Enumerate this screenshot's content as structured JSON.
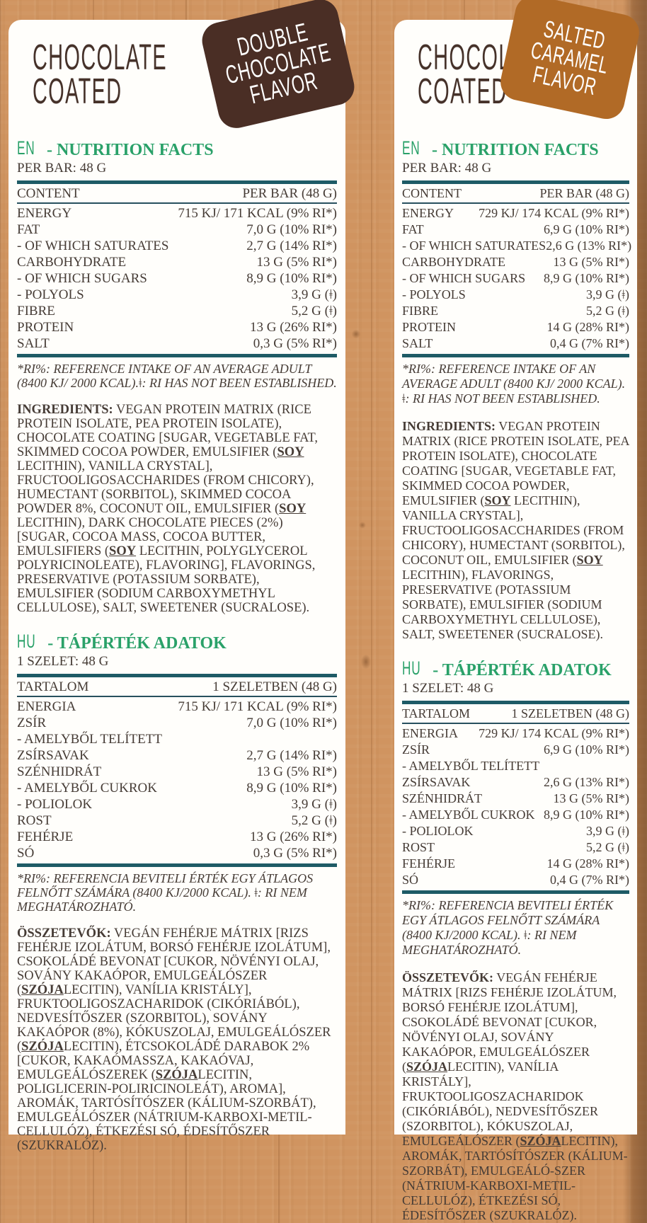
{
  "colors": {
    "wood_background": "#d09460",
    "card": "#fffefb",
    "title_brown": "#46322a",
    "badge_dark_chocolate": "#4a2e25",
    "badge_caramel": "#b16a26",
    "heading_green": "#2aa169",
    "rule_teal": "#1e5b66",
    "body_ink": "#463c36"
  },
  "left_panel": {
    "title": {
      "line1": "CHOCOLATE",
      "line2": "COATED"
    },
    "badge": {
      "line1": "DOUBLE",
      "line2": "CHOCOLATE",
      "line3": "FLAVOR"
    },
    "en": {
      "lang": "EN",
      "heading": "- NUTRITION FACTS",
      "serving": "PER BAR: 48 G",
      "col_content": "CONTENT",
      "col_amount": "PER BAR (48 G)",
      "rows": [
        [
          "ENERGY",
          "715 KJ/ 171 KCAL (9% RI*)"
        ],
        [
          "FAT",
          "7,0 G (10% RI*)"
        ],
        [
          "- OF WHICH SATURATES",
          "2,7 G (14% RI*)"
        ],
        [
          "CARBOHYDRATE",
          "13 G (5% RI*)"
        ],
        [
          "- OF WHICH SUGARS",
          "8,9 G (10% RI*)"
        ],
        [
          "- POLYOLS",
          "3,9 G (ǂ)"
        ],
        [
          "FIBRE",
          "5,2 G (ǂ)"
        ],
        [
          "PROTEIN",
          "13 G (26% RI*)"
        ],
        [
          "SALT",
          "0,3 G (5% RI*)"
        ]
      ],
      "note": "*RI%: REFERENCE INTAKE OF AN AVERAGE ADULT (8400 KJ/ 2000 KCAL).ǂ: RI HAS NOT BEEN ESTABLISHED.",
      "ingredients_label": "INGREDIENTS:",
      "ingredients": [
        {
          "t": " VEGAN PROTEIN MATRIX (RICE PROTEIN ISOLATE, PEA PROTEIN ISOLATE), CHOCOLATE COATING [SUGAR, VEGETABLE FAT, SKIMMED COCOA POWDER, EMULSIFIER ("
        },
        {
          "t": "SOY",
          "em": true
        },
        {
          "t": " LECITHIN), VANILLA CRYSTAL], FRUCTOOLIGOSACCHARIDES (FROM CHICORY), HUMECTANT (SORBITOL), SKIMMED COCOA POWDER 8%, COCONUT OIL, EMULSIFIER ("
        },
        {
          "t": "SOY",
          "em": true
        },
        {
          "t": " LECITHIN), DARK CHOCOLATE PIECES (2%) [SUGAR, COCOA MASS, COCOA BUTTER, EMULSIFIERS ("
        },
        {
          "t": "SOY",
          "em": true
        },
        {
          "t": " LECITHIN, POLYGLYCEROL POLYRICINOLEATE), FLAVORING], FLAVORINGS, PRESERVATIVE (POTASSIUM SORBATE), EMULSIFIER (SODIUM CARBOXYMETHYL CELLULOSE), SALT, SWEETENER (SUCRALOSE)."
        }
      ]
    },
    "hu": {
      "lang": "HU",
      "heading": "- TÁPÉRTÉK ADATOK",
      "serving": "1 SZELET: 48 G",
      "col_content": "TARTALOM",
      "col_amount": "1 SZELETBEN (48 G)",
      "rows": [
        [
          "ENERGIA",
          "715 KJ/ 171 KCAL (9% RI*)"
        ],
        [
          "ZSÍR",
          "7,0 G (10% RI*)"
        ],
        [
          "- AMELYBŐL TELÍTETT",
          ""
        ],
        [
          "ZSÍRSAVAK",
          "2,7 G (14% RI*)"
        ],
        [
          "SZÉNHIDRÁT",
          "13 G (5% RI*)"
        ],
        [
          "- AMELYBŐL CUKROK",
          "8,9 G (10% RI*)"
        ],
        [
          "- POLIOLOK",
          "3,9 G (ǂ)"
        ],
        [
          "ROST",
          "5,2 G (ǂ)"
        ],
        [
          "FEHÉRJE",
          "13 G (26% RI*)"
        ],
        [
          "SÓ",
          "0,3 G (5% RI*)"
        ]
      ],
      "note": "*RI%: REFERENCIA BEVITELI ÉRTÉK EGY ÁTLAGOS FELNŐTT SZÁMÁRA (8400 KJ/2000 KCAL). ǂ: RI NEM MEGHATÁROZHATÓ.",
      "ingredients_label": "ÖSSZETEVŐK:",
      "ingredients": [
        {
          "t": " VEGÁN FEHÉRJE MÁTRIX [RIZS FEHÉRJE IZOLÁTUM, BORSÓ FEHÉRJE IZOLÁTUM], CSOKOLÁDÉ BEVONAT [CUKOR, NÖVÉNYI OLAJ, SOVÁNY KAKAÓPOR, EMULGEÁLÓSZER ("
        },
        {
          "t": "SZÓJA",
          "em": true
        },
        {
          "t": "LECITIN), VANÍLIA KRISTÁLY], FRUKTOOLIGOSZACHARIDOK (CIKÓRIÁBÓL), NEDVESÍTŐSZER (SZORBITOL), SOVÁNY KAKAÓPOR (8%), KÓKUSZOLAJ, EMULGEÁLÓSZER ("
        },
        {
          "t": "SZÓJA",
          "em": true
        },
        {
          "t": "LECITIN), ÉTCSOKOLÁDÉ DARABOK 2% [CUKOR, KAKAÓMASSZA, KAKAÓVAJ, EMULGEÁLÓSZEREK ("
        },
        {
          "t": "SZÓJA",
          "em": true
        },
        {
          "t": "LECITIN, POLIGLICERIN-POLIRICINOLEÁT), AROMA], AROMÁK, TARTÓSÍTÓSZER (KÁLIUM-SZORBÁT), EMULGEÁLÓSZER (NÁTRIUM-KARBOXI-METIL-CELLULÓZ), ÉTKEZÉSI SÓ, ÉDESÍTŐSZER (SZUKRALÓZ)."
        }
      ]
    }
  },
  "right_panel": {
    "title": {
      "line1": "CHOCOLATE",
      "line2": "COATED"
    },
    "badge": {
      "line1": "SALTED",
      "line2": "CARAMEL",
      "line3": "FLAVOR"
    },
    "en": {
      "lang": "EN",
      "heading": "- NUTRITION FACTS",
      "serving": "PER BAR: 48 G",
      "col_content": "CONTENT",
      "col_amount": "PER BAR (48 G)",
      "rows": [
        [
          "ENERGY",
          "729 KJ/ 174 KCAL (9% RI*)"
        ],
        [
          "FAT",
          "6,9 G (10% RI*)"
        ],
        [
          "- OF WHICH SATURATES",
          "2,6 G (13% RI*)"
        ],
        [
          "CARBOHYDRATE",
          "13 G (5% RI*)"
        ],
        [
          "- OF WHICH SUGARS",
          "8,9 G (10% RI*)"
        ],
        [
          "- POLYOLS",
          "3,9 G (ǂ)"
        ],
        [
          "FIBRE",
          "5,2 G (ǂ)"
        ],
        [
          "PROTEIN",
          "14 G (28% RI*)"
        ],
        [
          "SALT",
          "0,4 G (7% RI*)"
        ]
      ],
      "note": "*RI%: REFERENCE INTAKE OF AN AVERAGE ADULT (8400 KJ/ 2000 KCAL). ǂ: RI HAS NOT BEEN ESTABLISHED.",
      "ingredients_label": "INGREDIENTS:",
      "ingredients": [
        {
          "t": " VEGAN PROTEIN MATRIX (RICE PROTEIN ISOLATE, PEA PROTEIN ISOLATE), CHOCOLATE COATING [SUGAR, VEGETABLE FAT, SKIMMED COCOA POWDER, EMULSIFIER ("
        },
        {
          "t": "SOY",
          "em": true
        },
        {
          "t": " LECITHIN), VANILLA CRYSTAL], FRUCTOOLIGOSACCHARIDES (FROM CHICORY), HUMECTANT (SORBITOL), COCONUT OIL, EMULSIFIER ("
        },
        {
          "t": "SOY",
          "em": true
        },
        {
          "t": " LECITHIN), FLAVORINGS, PRESERVATIVE (POTASSIUM SORBATE), EMULSIFIER (SODIUM CARBOXYMETHYL CELLULOSE), SALT, SWEETENER (SUCRALOSE)."
        }
      ]
    },
    "hu": {
      "lang": "HU",
      "heading": "- TÁPÉRTÉK ADATOK",
      "serving": "1 SZELET: 48 G",
      "col_content": "TARTALOM",
      "col_amount": "1 SZELETBEN (48 G)",
      "rows": [
        [
          "ENERGIA",
          "729 KJ/ 174 KCAL (9% RI*)"
        ],
        [
          "ZSÍR",
          "6,9 G (10% RI*)"
        ],
        [
          "- AMELYBŐL TELÍTETT",
          ""
        ],
        [
          "ZSÍRSAVAK",
          "2,6 G (13% RI*)"
        ],
        [
          "SZÉNHIDRÁT",
          "13 G (5% RI*)"
        ],
        [
          "- AMELYBŐL CUKROK",
          "8,9 G (10% RI*)"
        ],
        [
          "- POLIOLOK",
          "3,9 G (ǂ)"
        ],
        [
          "ROST",
          "5,2 G (ǂ)"
        ],
        [
          "FEHÉRJE",
          "14 G (28% RI*)"
        ],
        [
          "SÓ",
          "0,4 G (7% RI*)"
        ]
      ],
      "note": "*RI%: REFERENCIA BEVITELI ÉRTÉK EGY ÁTLAGOS FELNŐTT SZÁMÁRA (8400 KJ/2000 KCAL). ǂ: RI NEM MEGHATÁROZHATÓ.",
      "ingredients_label": "ÖSSZETEVŐK:",
      "ingredients": [
        {
          "t": " VEGÁN FEHÉRJE MÁTRIX [RIZS FEHÉRJE IZOLÁTUM, BORSÓ FEHÉRJE IZOLÁTUM], CSOKOLÁDÉ BEVONAT [CUKOR, NÖVÉNYI OLAJ, SOVÁNY KAKAÓPOR, EMULGEÁLÓSZER ("
        },
        {
          "t": "SZÓJA",
          "em": true
        },
        {
          "t": "LECITIN), VANÍLIA KRISTÁLY], FRUKTOOLIGOSZACHARIDOK (CIKÓRIÁBÓL), NEDVESÍTŐSZER (SZORBITOL), KÓKUSZOLAJ, EMULGEÁLÓSZER ("
        },
        {
          "t": "SZÓJA",
          "em": true
        },
        {
          "t": "LECITIN), AROMÁK, TARTÓSÍTÓSZER (KÁLIUM-SZORBÁT), EMULGEÁLÓ-SZER (NÁTRIUM-KARBOXI-METIL-CELLULÓZ), ÉTKEZÉSI SÓ, ÉDESÍTŐSZER (SZUKRALÓZ)."
        }
      ]
    }
  }
}
